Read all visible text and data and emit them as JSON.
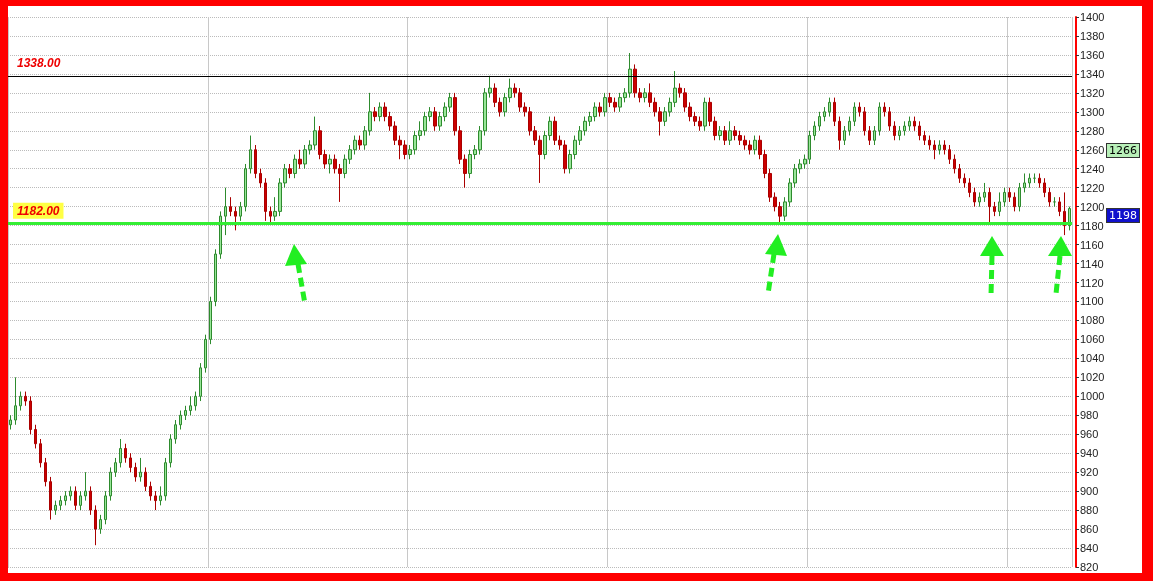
{
  "chart_data": {
    "type": "candlestick",
    "categories": [
      null,
      null,
      null,
      null,
      null,
      null,
      null,
      null,
      null,
      null,
      null,
      null,
      null,
      null,
      null,
      null,
      null,
      null,
      null,
      null,
      null,
      null,
      null,
      null,
      null,
      null,
      null,
      null,
      null,
      null,
      null,
      null,
      null,
      null,
      null,
      null,
      null,
      null,
      null,
      null,
      null,
      null,
      null,
      null,
      null,
      null,
      null,
      null,
      null,
      null,
      null,
      null,
      null,
      null,
      null,
      null,
      null,
      null,
      null,
      null,
      null,
      null,
      null,
      null,
      null,
      null,
      null,
      null,
      null,
      null,
      null,
      null,
      null,
      null,
      null,
      null,
      null,
      null,
      null,
      null,
      null,
      null,
      null,
      null,
      null,
      null,
      null,
      null,
      null,
      null,
      null,
      null,
      null,
      null,
      null,
      null,
      null,
      null,
      null,
      null,
      null,
      null,
      null,
      null,
      null,
      null,
      null,
      null,
      null,
      null,
      null,
      null,
      null,
      null,
      null,
      null,
      null,
      null,
      null,
      null,
      null,
      null,
      null,
      null,
      null,
      null,
      null,
      null,
      null,
      null,
      null,
      null,
      null,
      null,
      null,
      null,
      null,
      null,
      null,
      null,
      null,
      null,
      null,
      null,
      null,
      null,
      null,
      null,
      null,
      null,
      null,
      null,
      null,
      null,
      null,
      null,
      null,
      null,
      null,
      null,
      null,
      null,
      null,
      null,
      null,
      null,
      null,
      null,
      null,
      null,
      null,
      null,
      null,
      null,
      null,
      null,
      null,
      null,
      null,
      null,
      null,
      null,
      null,
      null,
      null,
      null,
      null,
      null,
      null,
      null,
      null,
      null,
      null,
      null,
      null,
      null,
      null,
      null,
      null,
      null,
      null,
      null,
      null,
      null,
      null,
      null,
      null,
      null,
      null,
      null,
      null,
      null,
      null
    ],
    "ohlc": [
      [
        970,
        980,
        965,
        975
      ],
      [
        975,
        1020,
        970,
        990
      ],
      [
        990,
        1005,
        985,
        1000
      ],
      [
        1000,
        1005,
        990,
        995
      ],
      [
        995,
        1000,
        960,
        965
      ],
      [
        965,
        970,
        945,
        950
      ],
      [
        950,
        955,
        925,
        930
      ],
      [
        930,
        935,
        905,
        910
      ],
      [
        910,
        915,
        870,
        880
      ],
      [
        880,
        890,
        875,
        885
      ],
      [
        885,
        895,
        880,
        890
      ],
      [
        890,
        900,
        885,
        895
      ],
      [
        895,
        905,
        890,
        900
      ],
      [
        900,
        905,
        880,
        885
      ],
      [
        885,
        900,
        880,
        895
      ],
      [
        895,
        920,
        890,
        900
      ],
      [
        900,
        905,
        875,
        880
      ],
      [
        880,
        885,
        843,
        860
      ],
      [
        860,
        875,
        855,
        870
      ],
      [
        870,
        900,
        865,
        895
      ],
      [
        895,
        925,
        890,
        920
      ],
      [
        920,
        935,
        915,
        930
      ],
      [
        930,
        955,
        925,
        945
      ],
      [
        945,
        950,
        930,
        935
      ],
      [
        935,
        940,
        920,
        925
      ],
      [
        925,
        930,
        910,
        915
      ],
      [
        915,
        935,
        910,
        920
      ],
      [
        920,
        925,
        900,
        905
      ],
      [
        905,
        910,
        890,
        895
      ],
      [
        895,
        900,
        880,
        890
      ],
      [
        890,
        905,
        885,
        895
      ],
      [
        895,
        935,
        890,
        930
      ],
      [
        930,
        960,
        925,
        955
      ],
      [
        955,
        975,
        950,
        970
      ],
      [
        970,
        985,
        965,
        980
      ],
      [
        980,
        990,
        975,
        985
      ],
      [
        985,
        1000,
        980,
        990
      ],
      [
        990,
        1005,
        985,
        1000
      ],
      [
        1000,
        1035,
        995,
        1030
      ],
      [
        1030,
        1065,
        1025,
        1060
      ],
      [
        1060,
        1105,
        1055,
        1100
      ],
      [
        1100,
        1155,
        1095,
        1150
      ],
      [
        1150,
        1195,
        1145,
        1190
      ],
      [
        1190,
        1220,
        1170,
        1200
      ],
      [
        1200,
        1210,
        1190,
        1195
      ],
      [
        1195,
        1200,
        1175,
        1190
      ],
      [
        1190,
        1205,
        1185,
        1200
      ],
      [
        1200,
        1245,
        1195,
        1240
      ],
      [
        1240,
        1275,
        1235,
        1260
      ],
      [
        1260,
        1265,
        1230,
        1235
      ],
      [
        1235,
        1240,
        1220,
        1225
      ],
      [
        1225,
        1230,
        1185,
        1195
      ],
      [
        1195,
        1200,
        1182,
        1190
      ],
      [
        1190,
        1210,
        1185,
        1195
      ],
      [
        1195,
        1230,
        1190,
        1225
      ],
      [
        1225,
        1245,
        1220,
        1240
      ],
      [
        1240,
        1245,
        1230,
        1235
      ],
      [
        1235,
        1255,
        1230,
        1250
      ],
      [
        1250,
        1260,
        1240,
        1245
      ],
      [
        1245,
        1265,
        1240,
        1260
      ],
      [
        1260,
        1270,
        1255,
        1265
      ],
      [
        1265,
        1295,
        1260,
        1280
      ],
      [
        1280,
        1285,
        1250,
        1255
      ],
      [
        1255,
        1260,
        1240,
        1245
      ],
      [
        1245,
        1255,
        1235,
        1250
      ],
      [
        1250,
        1255,
        1235,
        1240
      ],
      [
        1240,
        1245,
        1205,
        1235
      ],
      [
        1235,
        1255,
        1230,
        1250
      ],
      [
        1250,
        1265,
        1245,
        1260
      ],
      [
        1260,
        1275,
        1255,
        1270
      ],
      [
        1270,
        1275,
        1260,
        1265
      ],
      [
        1265,
        1285,
        1260,
        1280
      ],
      [
        1280,
        1320,
        1275,
        1300
      ],
      [
        1300,
        1305,
        1290,
        1295
      ],
      [
        1295,
        1310,
        1290,
        1305
      ],
      [
        1305,
        1310,
        1290,
        1295
      ],
      [
        1295,
        1300,
        1280,
        1285
      ],
      [
        1285,
        1290,
        1265,
        1270
      ],
      [
        1270,
        1275,
        1250,
        1265
      ],
      [
        1265,
        1270,
        1250,
        1255
      ],
      [
        1255,
        1265,
        1250,
        1260
      ],
      [
        1260,
        1280,
        1255,
        1275
      ],
      [
        1275,
        1290,
        1270,
        1280
      ],
      [
        1280,
        1300,
        1275,
        1295
      ],
      [
        1295,
        1305,
        1290,
        1300
      ],
      [
        1300,
        1305,
        1280,
        1285
      ],
      [
        1285,
        1300,
        1280,
        1295
      ],
      [
        1295,
        1310,
        1290,
        1305
      ],
      [
        1305,
        1320,
        1300,
        1315
      ],
      [
        1315,
        1320,
        1275,
        1280
      ],
      [
        1280,
        1285,
        1245,
        1250
      ],
      [
        1250,
        1255,
        1220,
        1235
      ],
      [
        1235,
        1260,
        1230,
        1255
      ],
      [
        1255,
        1265,
        1250,
        1260
      ],
      [
        1260,
        1285,
        1255,
        1280
      ],
      [
        1280,
        1325,
        1275,
        1320
      ],
      [
        1320,
        1338,
        1315,
        1325
      ],
      [
        1325,
        1330,
        1305,
        1310
      ],
      [
        1310,
        1315,
        1295,
        1300
      ],
      [
        1300,
        1320,
        1295,
        1315
      ],
      [
        1315,
        1335,
        1310,
        1325
      ],
      [
        1325,
        1330,
        1315,
        1320
      ],
      [
        1320,
        1325,
        1300,
        1305
      ],
      [
        1305,
        1310,
        1295,
        1300
      ],
      [
        1300,
        1305,
        1275,
        1280
      ],
      [
        1280,
        1285,
        1265,
        1270
      ],
      [
        1270,
        1275,
        1225,
        1255
      ],
      [
        1255,
        1280,
        1250,
        1275
      ],
      [
        1275,
        1295,
        1270,
        1290
      ],
      [
        1290,
        1295,
        1265,
        1270
      ],
      [
        1270,
        1275,
        1260,
        1265
      ],
      [
        1265,
        1270,
        1235,
        1240
      ],
      [
        1240,
        1260,
        1235,
        1255
      ],
      [
        1255,
        1275,
        1250,
        1270
      ],
      [
        1270,
        1285,
        1265,
        1280
      ],
      [
        1280,
        1295,
        1275,
        1290
      ],
      [
        1290,
        1300,
        1285,
        1295
      ],
      [
        1295,
        1310,
        1290,
        1305
      ],
      [
        1305,
        1310,
        1295,
        1300
      ],
      [
        1300,
        1320,
        1295,
        1315
      ],
      [
        1315,
        1320,
        1305,
        1310
      ],
      [
        1310,
        1315,
        1300,
        1305
      ],
      [
        1305,
        1320,
        1300,
        1315
      ],
      [
        1315,
        1325,
        1310,
        1320
      ],
      [
        1320,
        1362,
        1315,
        1345
      ],
      [
        1345,
        1350,
        1315,
        1320
      ],
      [
        1320,
        1325,
        1310,
        1315
      ],
      [
        1315,
        1325,
        1310,
        1320
      ],
      [
        1320,
        1330,
        1305,
        1310
      ],
      [
        1310,
        1315,
        1295,
        1300
      ],
      [
        1300,
        1305,
        1275,
        1290
      ],
      [
        1290,
        1305,
        1285,
        1300
      ],
      [
        1300,
        1315,
        1295,
        1310
      ],
      [
        1310,
        1343,
        1305,
        1325
      ],
      [
        1325,
        1330,
        1315,
        1320
      ],
      [
        1320,
        1325,
        1300,
        1305
      ],
      [
        1305,
        1310,
        1290,
        1295
      ],
      [
        1295,
        1300,
        1285,
        1290
      ],
      [
        1290,
        1295,
        1280,
        1285
      ],
      [
        1285,
        1315,
        1280,
        1310
      ],
      [
        1310,
        1315,
        1285,
        1290
      ],
      [
        1290,
        1295,
        1270,
        1275
      ],
      [
        1275,
        1285,
        1270,
        1280
      ],
      [
        1280,
        1285,
        1265,
        1270
      ],
      [
        1270,
        1290,
        1265,
        1280
      ],
      [
        1280,
        1285,
        1270,
        1275
      ],
      [
        1275,
        1280,
        1265,
        1270
      ],
      [
        1270,
        1275,
        1260,
        1265
      ],
      [
        1265,
        1270,
        1255,
        1260
      ],
      [
        1260,
        1275,
        1255,
        1270
      ],
      [
        1270,
        1275,
        1250,
        1255
      ],
      [
        1255,
        1260,
        1230,
        1235
      ],
      [
        1235,
        1240,
        1205,
        1210
      ],
      [
        1210,
        1215,
        1195,
        1200
      ],
      [
        1200,
        1205,
        1182,
        1190
      ],
      [
        1190,
        1210,
        1185,
        1205
      ],
      [
        1205,
        1230,
        1200,
        1225
      ],
      [
        1225,
        1245,
        1220,
        1240
      ],
      [
        1240,
        1250,
        1235,
        1245
      ],
      [
        1245,
        1255,
        1240,
        1250
      ],
      [
        1250,
        1280,
        1245,
        1275
      ],
      [
        1275,
        1290,
        1270,
        1285
      ],
      [
        1285,
        1300,
        1280,
        1295
      ],
      [
        1295,
        1305,
        1290,
        1300
      ],
      [
        1300,
        1315,
        1295,
        1310
      ],
      [
        1310,
        1315,
        1285,
        1290
      ],
      [
        1290,
        1295,
        1260,
        1270
      ],
      [
        1270,
        1285,
        1265,
        1280
      ],
      [
        1280,
        1295,
        1275,
        1290
      ],
      [
        1290,
        1310,
        1285,
        1305
      ],
      [
        1305,
        1310,
        1295,
        1300
      ],
      [
        1300,
        1305,
        1275,
        1280
      ],
      [
        1280,
        1285,
        1265,
        1270
      ],
      [
        1270,
        1285,
        1265,
        1280
      ],
      [
        1280,
        1310,
        1275,
        1305
      ],
      [
        1305,
        1310,
        1295,
        1300
      ],
      [
        1300,
        1305,
        1280,
        1285
      ],
      [
        1285,
        1290,
        1270,
        1275
      ],
      [
        1275,
        1285,
        1270,
        1280
      ],
      [
        1280,
        1290,
        1275,
        1285
      ],
      [
        1285,
        1295,
        1280,
        1290
      ],
      [
        1290,
        1295,
        1280,
        1285
      ],
      [
        1285,
        1290,
        1270,
        1275
      ],
      [
        1275,
        1280,
        1265,
        1270
      ],
      [
        1270,
        1275,
        1260,
        1265
      ],
      [
        1265,
        1270,
        1250,
        1260
      ],
      [
        1260,
        1270,
        1255,
        1265
      ],
      [
        1265,
        1270,
        1255,
        1260
      ],
      [
        1260,
        1265,
        1245,
        1250
      ],
      [
        1250,
        1255,
        1235,
        1240
      ],
      [
        1240,
        1245,
        1225,
        1230
      ],
      [
        1230,
        1235,
        1220,
        1225
      ],
      [
        1225,
        1230,
        1210,
        1215
      ],
      [
        1215,
        1220,
        1200,
        1205
      ],
      [
        1205,
        1215,
        1200,
        1210
      ],
      [
        1210,
        1225,
        1205,
        1215
      ],
      [
        1215,
        1220,
        1182,
        1200
      ],
      [
        1200,
        1205,
        1190,
        1195
      ],
      [
        1195,
        1215,
        1190,
        1205
      ],
      [
        1205,
        1220,
        1200,
        1215
      ],
      [
        1215,
        1220,
        1205,
        1210
      ],
      [
        1210,
        1215,
        1195,
        1200
      ],
      [
        1200,
        1225,
        1195,
        1220
      ],
      [
        1220,
        1235,
        1215,
        1225
      ],
      [
        1225,
        1235,
        1220,
        1230
      ],
      [
        1230,
        1235,
        1225,
        1230
      ],
      [
        1230,
        1235,
        1220,
        1225
      ],
      [
        1225,
        1230,
        1210,
        1215
      ],
      [
        1215,
        1220,
        1200,
        1205
      ],
      [
        1205,
        1210,
        1200,
        1205
      ],
      [
        1205,
        1210,
        1190,
        1195
      ],
      [
        1195,
        1215,
        1170,
        1180
      ],
      [
        1180,
        1200,
        1175,
        1198
      ]
    ],
    "ylim": [
      820,
      1400
    ],
    "yticks": [
      820,
      840,
      860,
      880,
      900,
      920,
      940,
      960,
      980,
      1000,
      1020,
      1040,
      1060,
      1080,
      1100,
      1120,
      1140,
      1160,
      1180,
      1200,
      1220,
      1240,
      1260,
      1280,
      1300,
      1320,
      1340,
      1360,
      1380,
      1400
    ],
    "grid": true,
    "ref_lines": [
      {
        "axis": "y",
        "value": 1338,
        "label": "1338.00",
        "color": "#000000"
      },
      {
        "axis": "y",
        "value": 1182,
        "label": "1182.00",
        "color": "#33ee33"
      }
    ],
    "annotations": [
      "1266",
      "1198"
    ]
  }
}
